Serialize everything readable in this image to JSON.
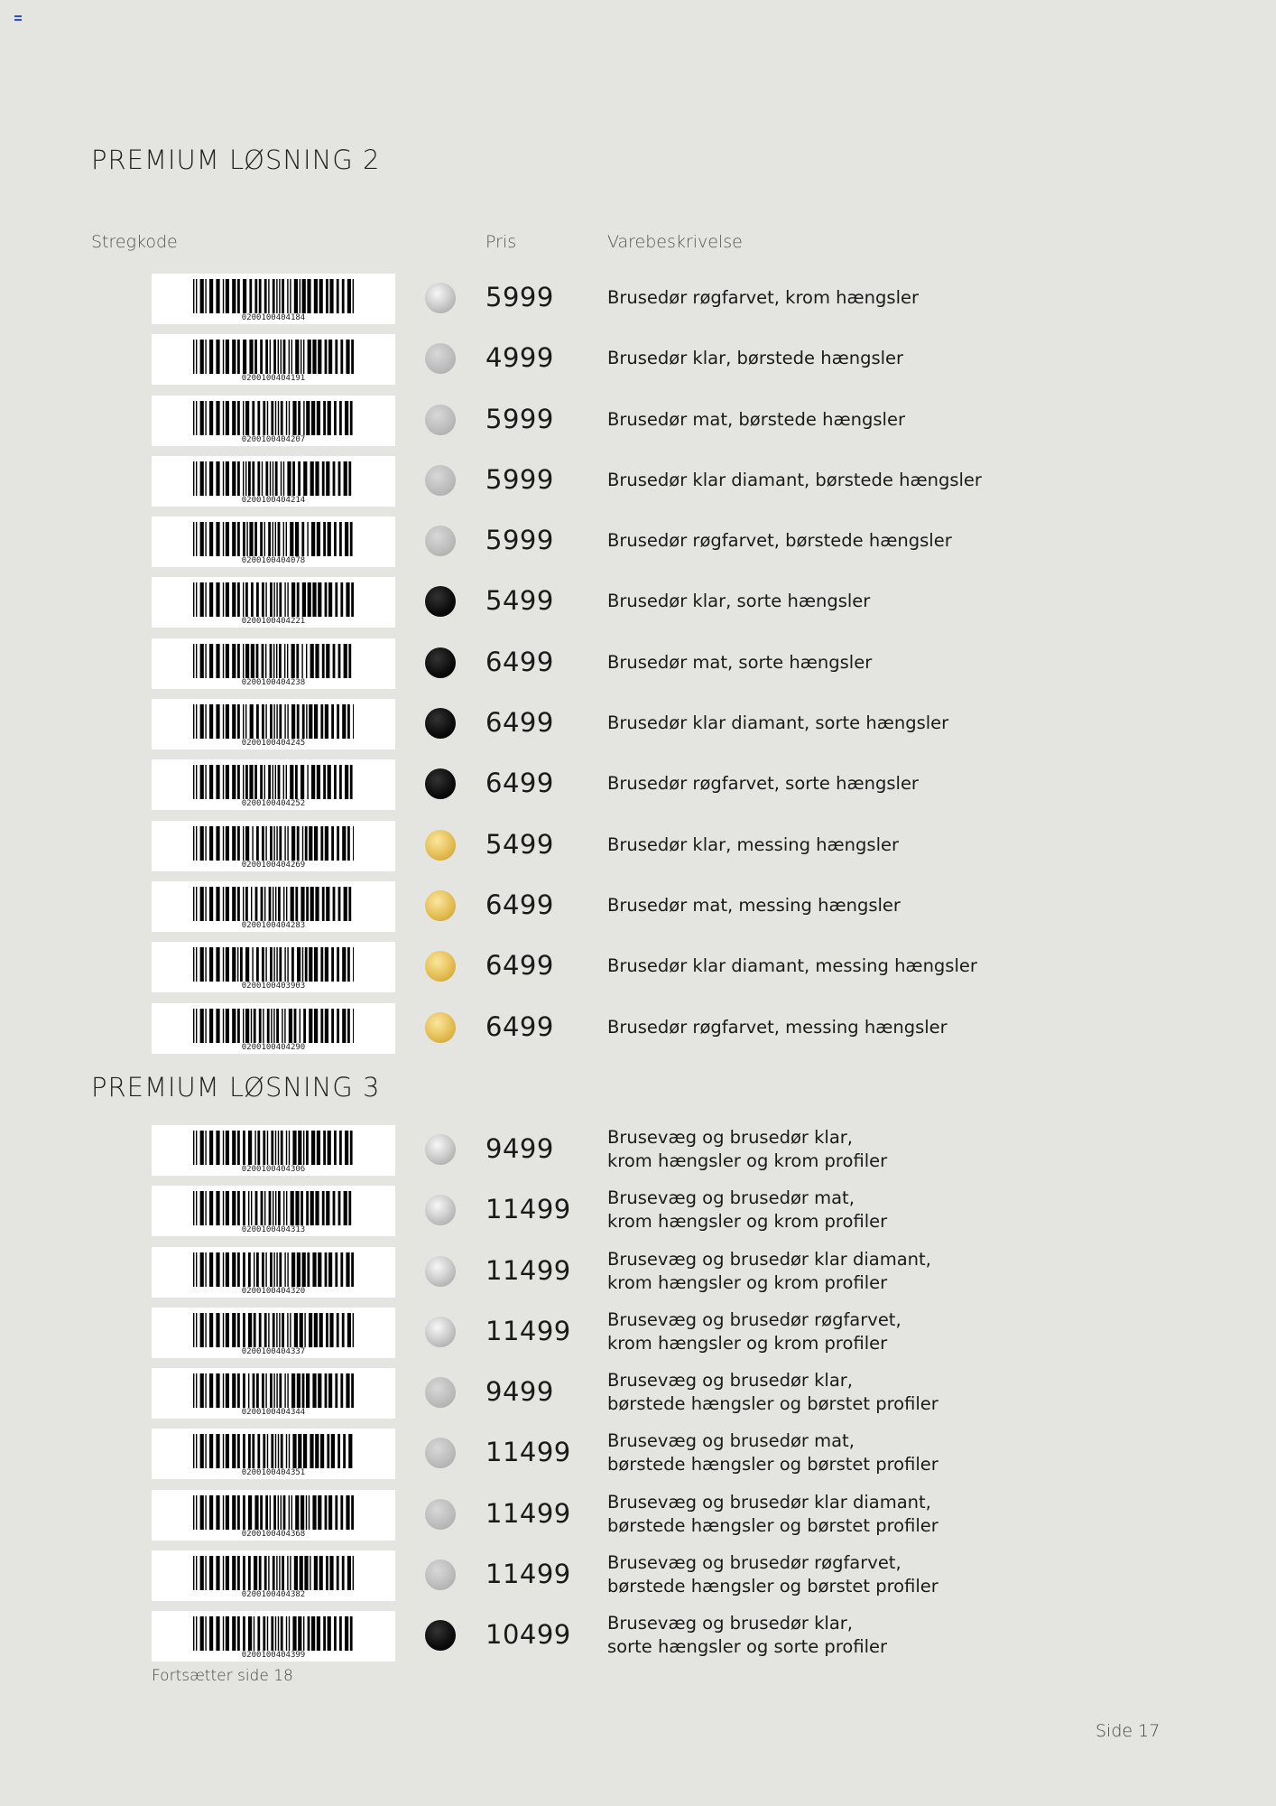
{
  "section1": {
    "title": "PREMIUM LØSNING 2",
    "headers": {
      "code": "Stregkode",
      "price": "Pris",
      "desc": "Varebeskrivelse"
    },
    "rows": [
      {
        "code": "0200100404184",
        "finish": "chrome",
        "price": "5999",
        "desc": [
          "Brusedør røgfarvet, krom hængsler"
        ]
      },
      {
        "code": "0200100404191",
        "finish": "brushed",
        "price": "4999",
        "desc": [
          "Brusedør klar, børstede hængsler"
        ]
      },
      {
        "code": "0200100404207",
        "finish": "brushed",
        "price": "5999",
        "desc": [
          "Brusedør mat, børstede hængsler"
        ]
      },
      {
        "code": "0200100404214",
        "finish": "brushed",
        "price": "5999",
        "desc": [
          "Brusedør klar diamant, børstede hængsler"
        ]
      },
      {
        "code": "0200100404078",
        "finish": "brushed",
        "price": "5999",
        "desc": [
          "Brusedør røgfarvet, børstede hængsler"
        ]
      },
      {
        "code": "0200100404221",
        "finish": "black",
        "price": "5499",
        "desc": [
          "Brusedør klar, sorte hængsler"
        ]
      },
      {
        "code": "0200100404238",
        "finish": "black",
        "price": "6499",
        "desc": [
          "Brusedør mat, sorte hængsler"
        ]
      },
      {
        "code": "0200100404245",
        "finish": "black",
        "price": "6499",
        "desc": [
          "Brusedør klar diamant, sorte hængsler"
        ]
      },
      {
        "code": "0200100404252",
        "finish": "black",
        "price": "6499",
        "desc": [
          "Brusedør røgfarvet, sorte hængsler"
        ]
      },
      {
        "code": "0200100404269",
        "finish": "brass",
        "price": "5499",
        "desc": [
          "Brusedør klar, messing hængsler"
        ]
      },
      {
        "code": "0200100404283",
        "finish": "brass",
        "price": "6499",
        "desc": [
          "Brusedør mat, messing hængsler"
        ]
      },
      {
        "code": "0200100403903",
        "finish": "brass",
        "price": "6499",
        "desc": [
          "Brusedør klar diamant, messing hængsler"
        ]
      },
      {
        "code": "0200100404290",
        "finish": "brass",
        "price": "6499",
        "desc": [
          "Brusedør røgfarvet, messing hængsler"
        ]
      }
    ]
  },
  "section2": {
    "title": "PREMIUM LØSNING 3",
    "rows": [
      {
        "code": "0200100404306",
        "finish": "chrome",
        "price": "9499",
        "desc": [
          "Brusevæg og brusedør klar,",
          "krom hængsler og krom profiler"
        ]
      },
      {
        "code": "0200100404313",
        "finish": "chrome",
        "price": "11499",
        "desc": [
          "Brusevæg og brusedør mat,",
          "krom hængsler og krom profiler"
        ]
      },
      {
        "code": "0200100404320",
        "finish": "chrome",
        "price": "11499",
        "desc": [
          "Brusevæg og brusedør klar diamant,",
          "krom hængsler og krom profiler"
        ]
      },
      {
        "code": "0200100404337",
        "finish": "chrome",
        "price": "11499",
        "desc": [
          "Brusevæg og brusedør røgfarvet,",
          "krom hængsler og krom profiler"
        ]
      },
      {
        "code": "0200100404344",
        "finish": "brushed",
        "price": "9499",
        "desc": [
          "Brusevæg og brusedør klar,",
          "børstede hængsler og børstet profiler"
        ]
      },
      {
        "code": "0200100404351",
        "finish": "brushed",
        "price": "11499",
        "desc": [
          "Brusevæg og brusedør mat,",
          "børstede hængsler og børstet profiler"
        ]
      },
      {
        "code": "0200100404368",
        "finish": "brushed",
        "price": "11499",
        "desc": [
          "Brusevæg og brusedør klar diamant,",
          "børstede hængsler og børstet profiler"
        ]
      },
      {
        "code": "0200100404382",
        "finish": "brushed",
        "price": "11499",
        "desc": [
          "Brusevæg og brusedør røgfarvet,",
          "børstede hængsler og børstet profiler"
        ]
      },
      {
        "code": "0200100404399",
        "finish": "black",
        "price": "10499",
        "desc": [
          "Brusevæg og brusedør klar,",
          "sorte hængsler og sorte profiler"
        ]
      }
    ]
  },
  "footer": {
    "continue_note": "Fortsætter side 18",
    "page_number": "Side 17"
  }
}
